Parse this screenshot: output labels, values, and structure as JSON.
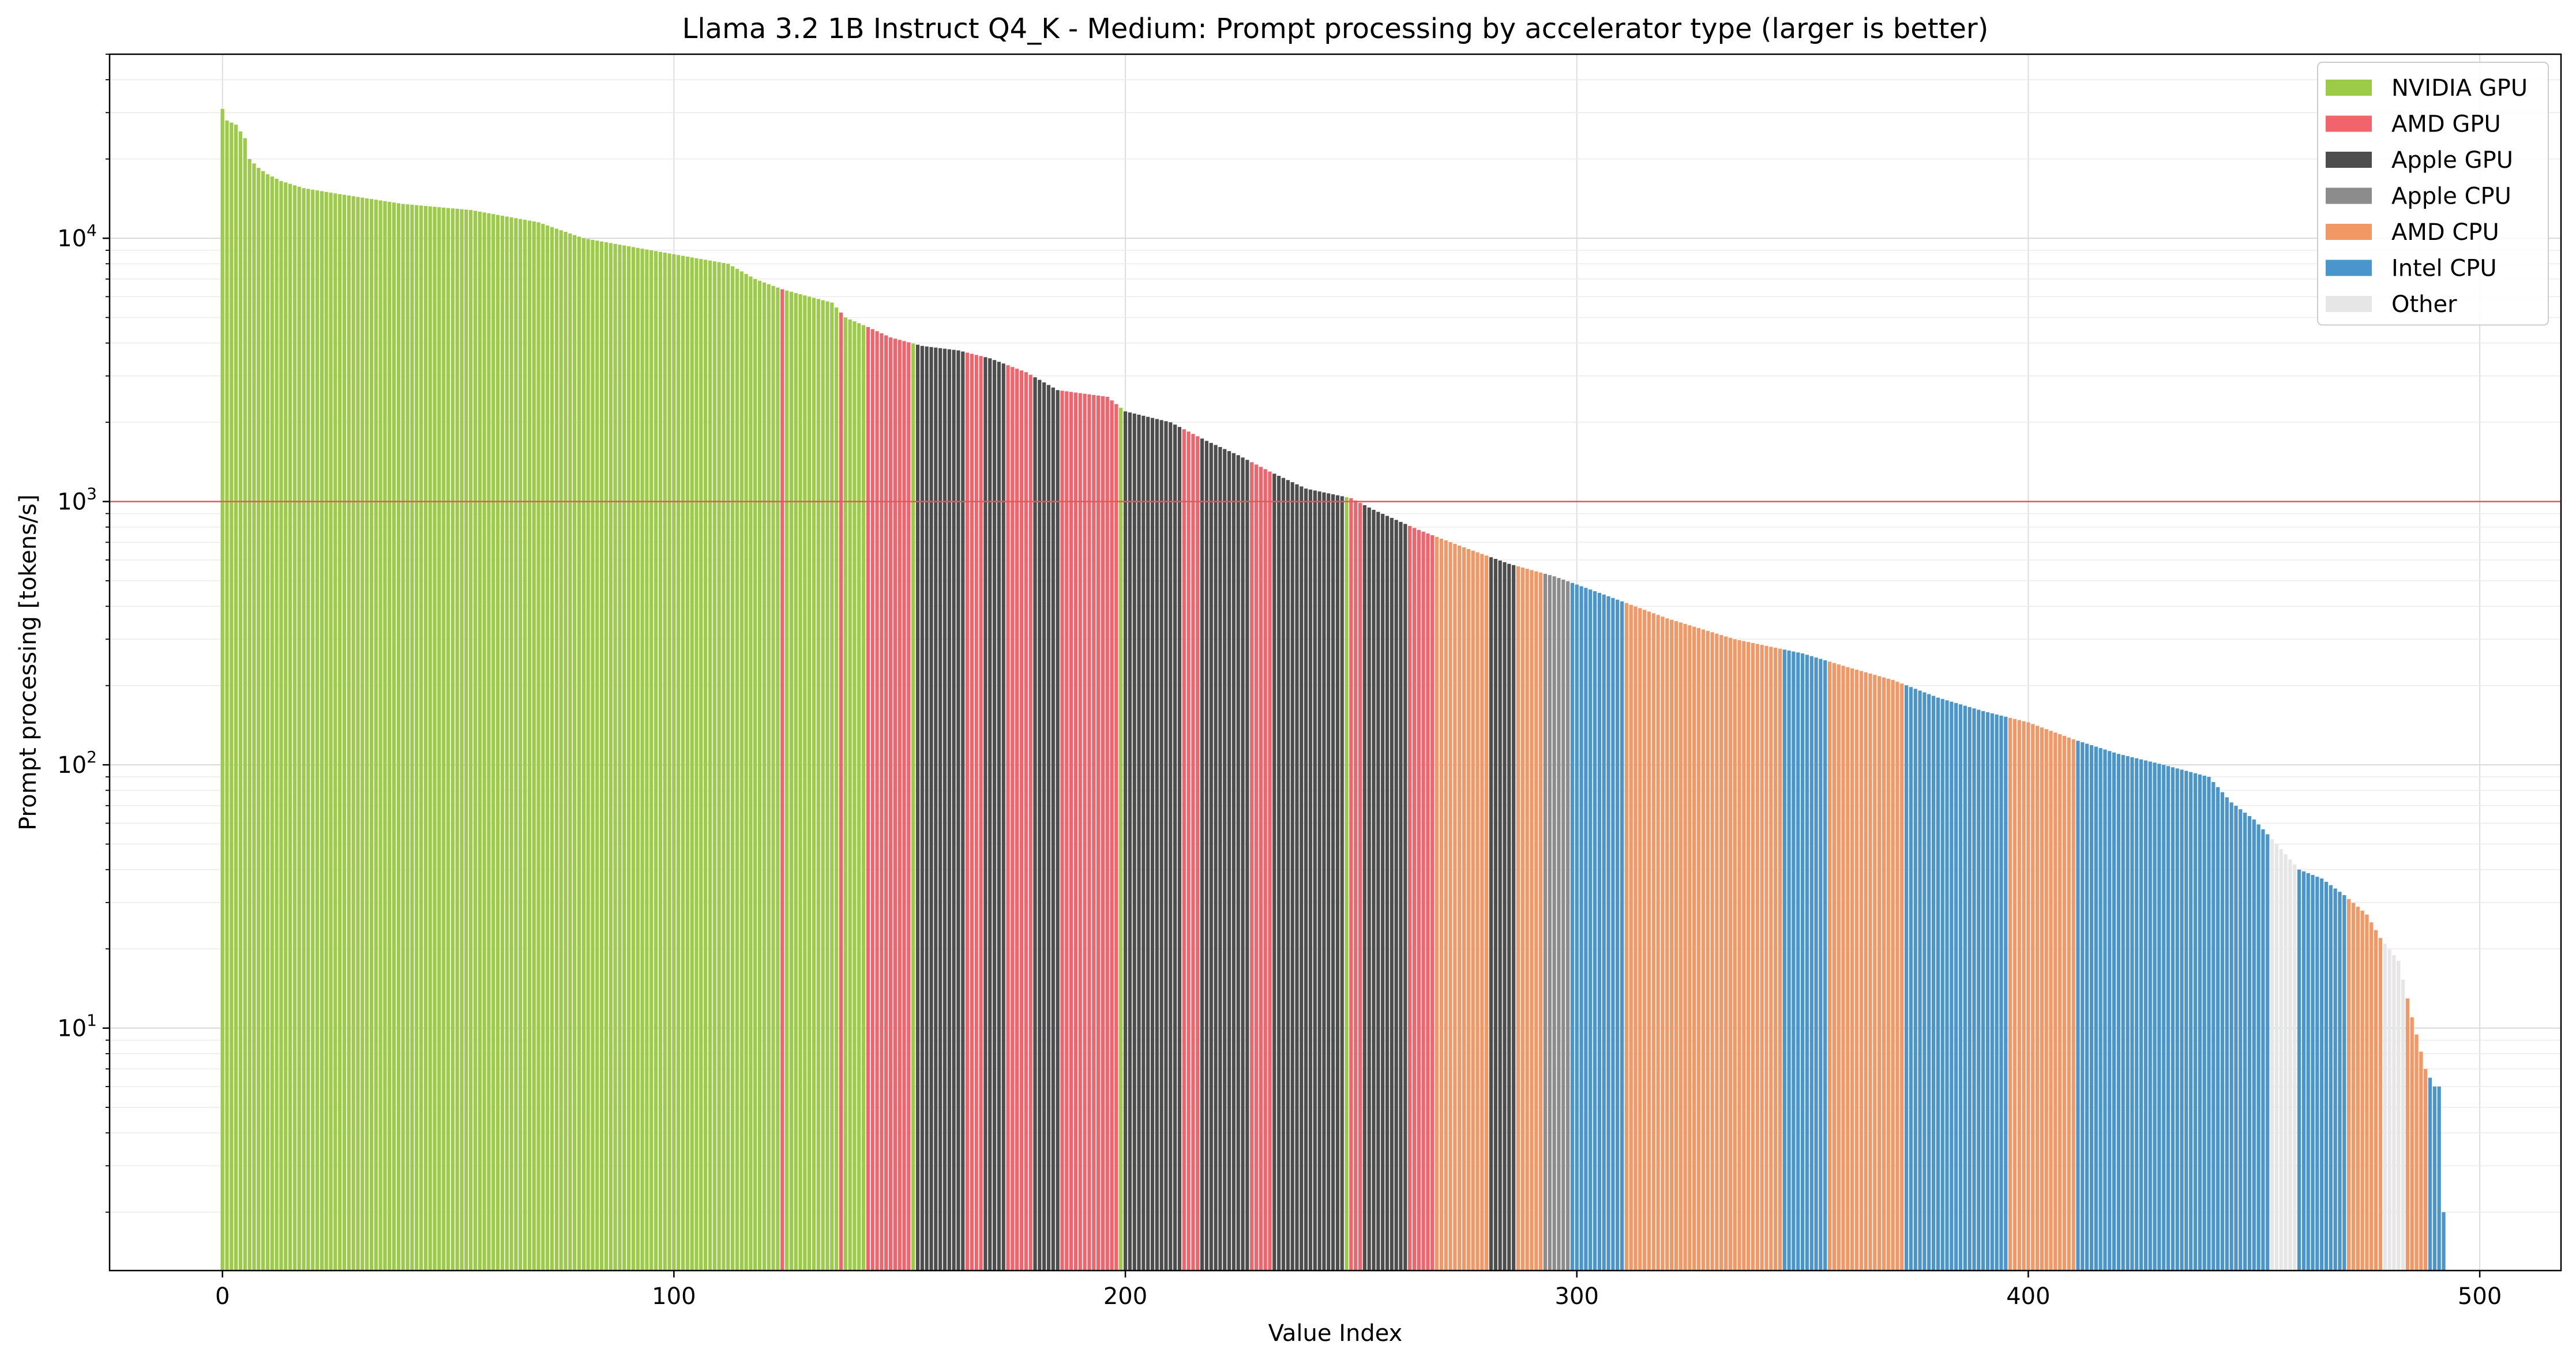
{
  "chart_data": {
    "type": "bar",
    "title": "Llama 3.2 1B Instruct Q4_K - Medium: Prompt processing by accelerator type (larger is better)",
    "xlabel": "Value Index",
    "ylabel": "Prompt processing [tokens/s]",
    "x_scale": "linear",
    "y_scale": "log",
    "xlim": [
      -25,
      518
    ],
    "ylim": [
      1.2,
      50000
    ],
    "x_ticks": [
      0,
      100,
      200,
      300,
      400,
      500
    ],
    "x_tick_labels": [
      "0",
      "100",
      "200",
      "300",
      "400",
      "500"
    ],
    "y_major_ticks": [
      10,
      100,
      1000,
      10000
    ],
    "y_major_tick_labels": [
      "10",
      "2",
      "3",
      "4"
    ],
    "y_tick_base": "10",
    "grid": true,
    "reference_line": {
      "y": 1000,
      "color": "#e45756"
    },
    "legend_position": "top-right",
    "categories": [
      {
        "name": "NVIDIA GPU",
        "color": "#9ccb4a"
      },
      {
        "name": "AMD GPU",
        "color": "#f2646b"
      },
      {
        "name": "Apple GPU",
        "color": "#4d4d4d"
      },
      {
        "name": "Apple CPU",
        "color": "#8c8c8c"
      },
      {
        "name": "AMD CPU",
        "color": "#f29866"
      },
      {
        "name": "Intel CPU",
        "color": "#4a96cc"
      },
      {
        "name": "Other",
        "color": "#e6e6e6"
      }
    ],
    "value_anchors": [
      [
        0,
        31000
      ],
      [
        1,
        28000
      ],
      [
        3,
        27000
      ],
      [
        5,
        24000
      ],
      [
        6,
        20000
      ],
      [
        8,
        18500
      ],
      [
        10,
        17500
      ],
      [
        13,
        16500
      ],
      [
        18,
        15500
      ],
      [
        25,
        14800
      ],
      [
        40,
        13500
      ],
      [
        55,
        12800
      ],
      [
        70,
        11500
      ],
      [
        80,
        10000
      ],
      [
        95,
        9000
      ],
      [
        112,
        8000
      ],
      [
        118,
        7000
      ],
      [
        124,
        6400
      ],
      [
        130,
        6000
      ],
      [
        135,
        5700
      ],
      [
        138,
        5000
      ],
      [
        143,
        4600
      ],
      [
        148,
        4200
      ],
      [
        155,
        3900
      ],
      [
        163,
        3750
      ],
      [
        170,
        3500
      ],
      [
        178,
        3100
      ],
      [
        185,
        2650
      ],
      [
        196,
        2500
      ],
      [
        200,
        2200
      ],
      [
        210,
        2000
      ],
      [
        218,
        1700
      ],
      [
        225,
        1500
      ],
      [
        232,
        1300
      ],
      [
        240,
        1120
      ],
      [
        250,
        1030
      ],
      [
        255,
        930
      ],
      [
        265,
        780
      ],
      [
        275,
        670
      ],
      [
        285,
        580
      ],
      [
        295,
        520
      ],
      [
        305,
        450
      ],
      [
        320,
        360
      ],
      [
        335,
        300
      ],
      [
        350,
        265
      ],
      [
        360,
        235
      ],
      [
        370,
        210
      ],
      [
        380,
        180
      ],
      [
        390,
        160
      ],
      [
        400,
        145
      ],
      [
        410,
        125
      ],
      [
        420,
        110
      ],
      [
        430,
        100
      ],
      [
        440,
        90
      ],
      [
        445,
        72
      ],
      [
        450,
        62
      ],
      [
        455,
        50
      ],
      [
        460,
        40
      ],
      [
        465,
        37
      ],
      [
        470,
        32
      ],
      [
        475,
        27
      ],
      [
        478,
        22
      ],
      [
        482,
        18
      ],
      [
        485,
        11
      ],
      [
        488,
        7
      ],
      [
        490,
        6
      ],
      [
        491,
        6
      ],
      [
        492,
        2
      ]
    ],
    "category_runs": [
      [
        0,
        123,
        "NVIDIA GPU"
      ],
      [
        124,
        124,
        "AMD GPU"
      ],
      [
        125,
        136,
        "NVIDIA GPU"
      ],
      [
        137,
        137,
        "AMD GPU"
      ],
      [
        138,
        142,
        "NVIDIA GPU"
      ],
      [
        143,
        152,
        "AMD GPU"
      ],
      [
        153,
        153,
        "NVIDIA GPU"
      ],
      [
        154,
        164,
        "Apple GPU"
      ],
      [
        165,
        168,
        "AMD GPU"
      ],
      [
        169,
        173,
        "Apple GPU"
      ],
      [
        174,
        179,
        "AMD GPU"
      ],
      [
        180,
        185,
        "Apple GPU"
      ],
      [
        186,
        198,
        "AMD GPU"
      ],
      [
        199,
        199,
        "NVIDIA GPU"
      ],
      [
        200,
        212,
        "Apple GPU"
      ],
      [
        213,
        216,
        "AMD GPU"
      ],
      [
        217,
        227,
        "Apple GPU"
      ],
      [
        228,
        232,
        "AMD GPU"
      ],
      [
        233,
        248,
        "Apple GPU"
      ],
      [
        249,
        249,
        "NVIDIA GPU"
      ],
      [
        250,
        252,
        "AMD GPU"
      ],
      [
        253,
        262,
        "Apple GPU"
      ],
      [
        263,
        268,
        "AMD GPU"
      ],
      [
        269,
        280,
        "AMD CPU"
      ],
      [
        281,
        286,
        "Apple GPU"
      ],
      [
        287,
        292,
        "AMD CPU"
      ],
      [
        293,
        298,
        "Apple CPU"
      ],
      [
        299,
        310,
        "Intel CPU"
      ],
      [
        311,
        345,
        "AMD CPU"
      ],
      [
        346,
        355,
        "Intel CPU"
      ],
      [
        356,
        372,
        "AMD CPU"
      ],
      [
        373,
        395,
        "Intel CPU"
      ],
      [
        396,
        410,
        "AMD CPU"
      ],
      [
        411,
        453,
        "Intel CPU"
      ],
      [
        454,
        459,
        "Other"
      ],
      [
        460,
        470,
        "Intel CPU"
      ],
      [
        471,
        478,
        "AMD CPU"
      ],
      [
        479,
        483,
        "Other"
      ],
      [
        484,
        488,
        "AMD CPU"
      ],
      [
        489,
        492,
        "Intel CPU"
      ]
    ],
    "n_bars": 493
  }
}
